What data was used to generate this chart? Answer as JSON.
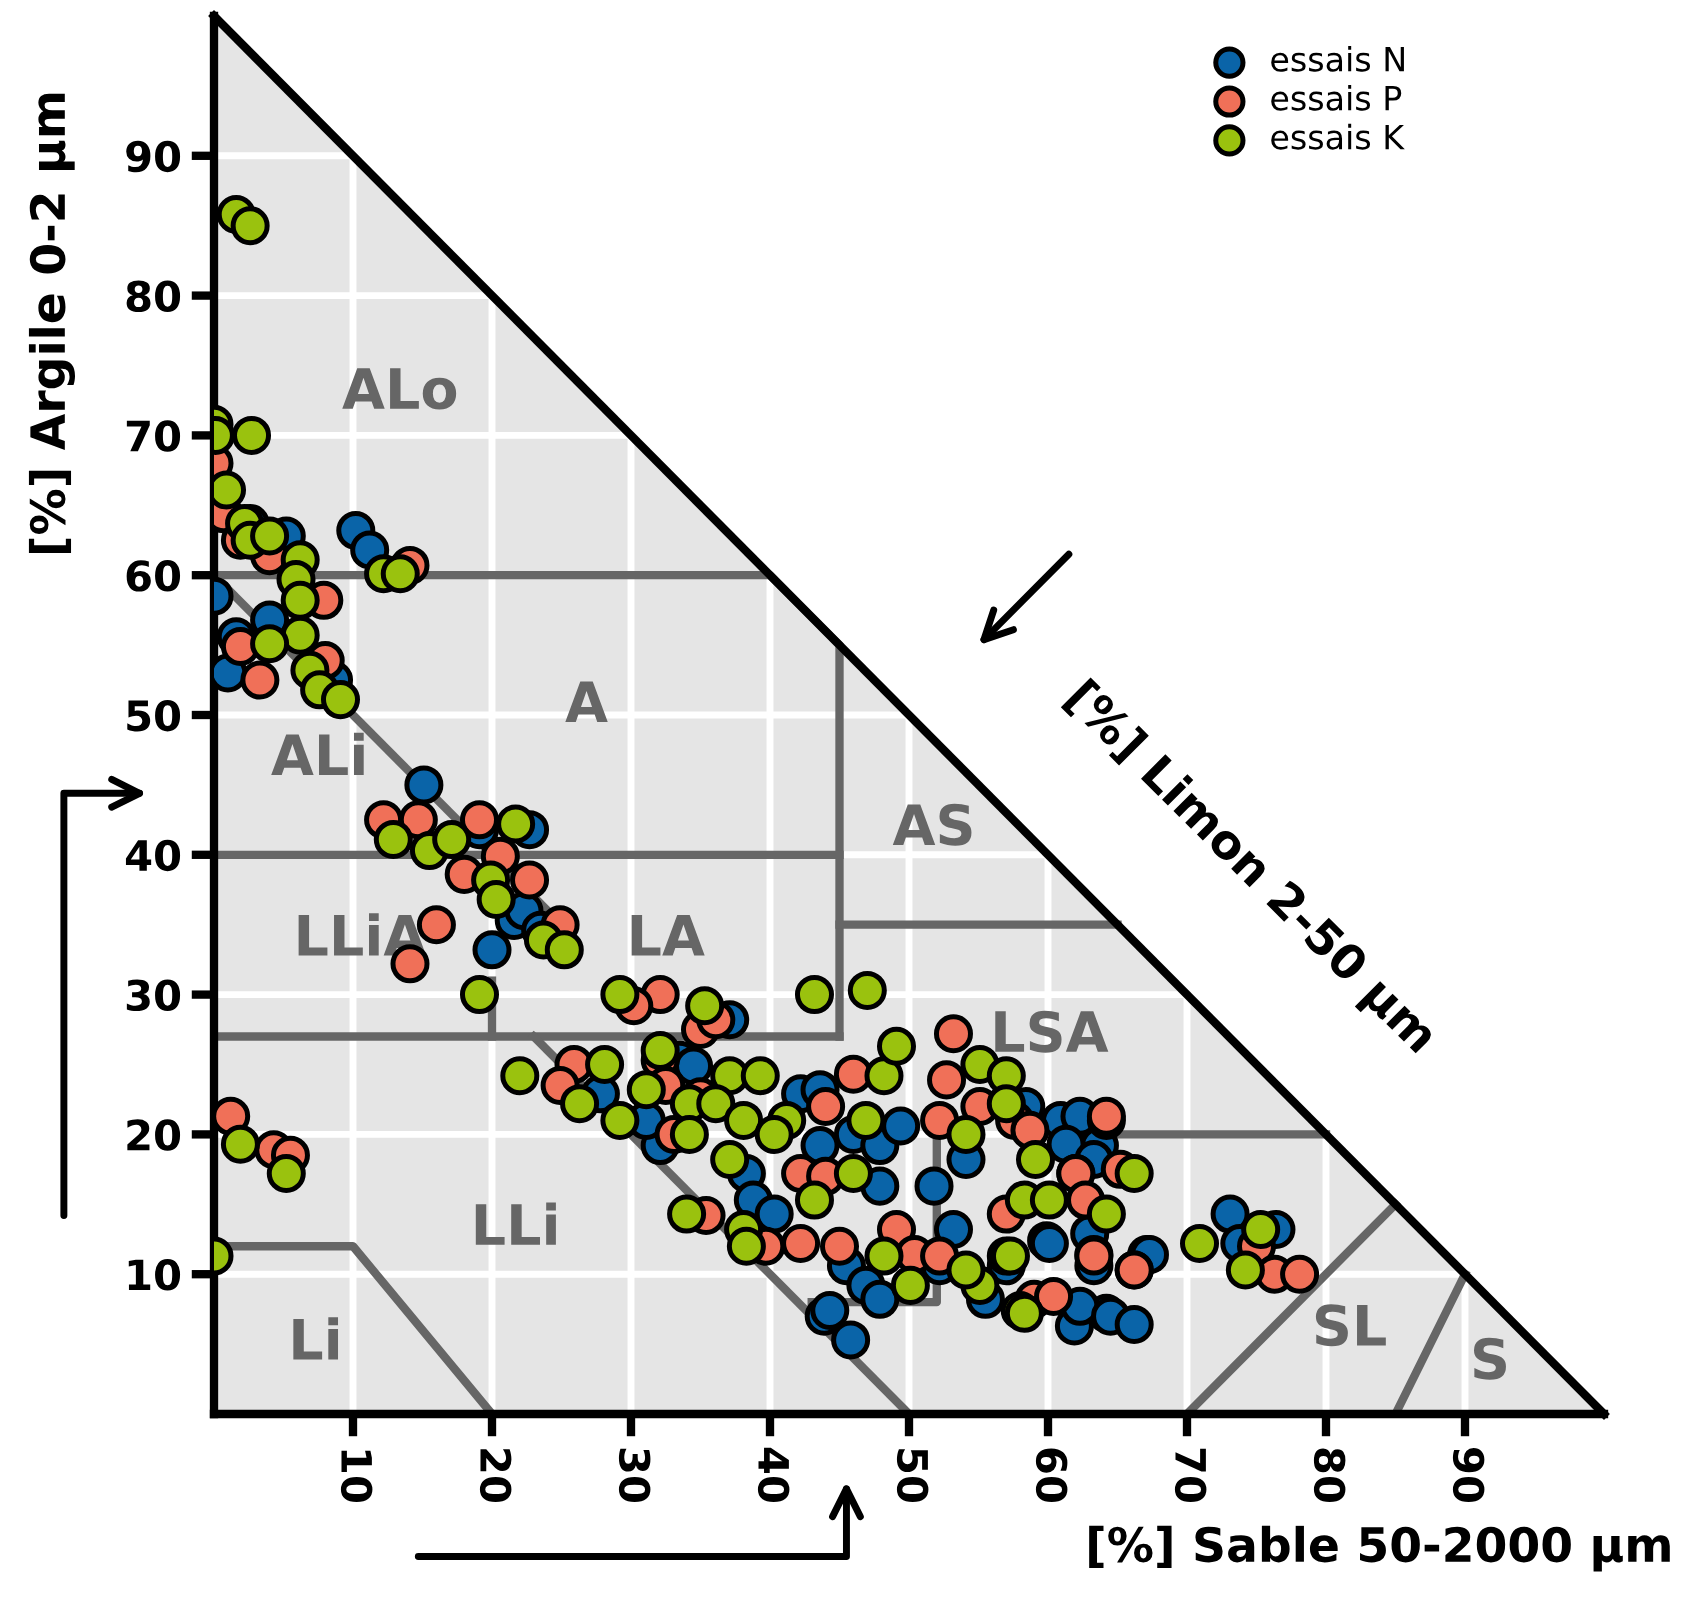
{
  "chart_data": {
    "type": "scatter",
    "xlabel": "[%] Sable 50-2000 µm",
    "ylabel": "[%] Argile 0-2 µm",
    "xlim": [
      0,
      100
    ],
    "ylim": [
      0,
      100
    ],
    "xticks": [
      10,
      20,
      30,
      40,
      50,
      60,
      70,
      80,
      90
    ],
    "yticks": [
      10,
      20,
      30,
      40,
      50,
      60,
      70,
      80,
      90
    ],
    "grid": true,
    "legend": "top right",
    "marker": "circle",
    "annotations": [
      "[%] Limon 2-50 µm",
      "ALo",
      "A",
      "ALi",
      "AS",
      "LLiA",
      "LA",
      "LSA",
      "LLi",
      "Li",
      "SL",
      "S"
    ],
    "series": [
      {
        "type": "line",
        "color": "#000000",
        "marker": "none",
        "x": [
          100,
          0
        ],
        "values": [
          0,
          100
        ]
      },
      {
        "type": "line",
        "color": "#666666",
        "marker": "none",
        "x": [
          0,
          40,
          45,
          45
        ],
        "values": [
          60,
          60,
          55,
          27
        ]
      },
      {
        "type": "line",
        "color": "#666666",
        "marker": "none",
        "x": [
          0,
          45
        ],
        "values": [
          40,
          40
        ]
      },
      {
        "type": "line",
        "color": "#666666",
        "marker": "none",
        "x": [
          45,
          65
        ],
        "values": [
          35,
          35
        ]
      },
      {
        "type": "line",
        "color": "#666666",
        "marker": "none",
        "x": [
          0,
          45
        ],
        "values": [
          27,
          27
        ]
      },
      {
        "type": "line",
        "color": "#666666",
        "marker": "none",
        "x": [
          0,
          25
        ],
        "values": [
          60,
          35
        ]
      },
      {
        "type": "line",
        "color": "#666666",
        "marker": "none",
        "x": [
          20,
          20
        ],
        "values": [
          31,
          27
        ]
      },
      {
        "type": "line",
        "color": "#666666",
        "marker": "none",
        "x": [
          23,
          50
        ],
        "values": [
          27,
          0
        ]
      },
      {
        "type": "line",
        "color": "#666666",
        "marker": "none",
        "x": [
          0,
          10,
          20
        ],
        "values": [
          12,
          12,
          0
        ]
      },
      {
        "type": "line",
        "color": "#666666",
        "marker": "none",
        "x": [
          43,
          52,
          52
        ],
        "values": [
          8,
          8,
          20
        ]
      },
      {
        "type": "line",
        "color": "#666666",
        "marker": "none",
        "x": [
          65,
          80
        ],
        "values": [
          20,
          20
        ]
      },
      {
        "type": "line",
        "color": "#666666",
        "marker": "none",
        "x": [
          70,
          85
        ],
        "values": [
          0,
          15
        ]
      },
      {
        "type": "line",
        "color": "#666666",
        "marker": "none",
        "x": [
          85,
          90
        ],
        "values": [
          0,
          10
        ]
      },
      {
        "name": "essais N",
        "color": "#0a64a8",
        "x": [
          0,
          1,
          1.6,
          2.6,
          5.2,
          4,
          8.6,
          10.2,
          11.2,
          15.1,
          19.1,
          22.7,
          20,
          21.6,
          22.3,
          23.5,
          33.5,
          27.8,
          32.1,
          31.1,
          34.5,
          37.1,
          38.3,
          38.8,
          40.3,
          42.2,
          43.6,
          43.6,
          46,
          47.9,
          49.4,
          47.9,
          45.5,
          46.9,
          47.9,
          43.9,
          45.8,
          51.8,
          53.2,
          54.1,
          52.2,
          60.9,
          63.7,
          59.9,
          63.3,
          61.9,
          64.2,
          67.1,
          57,
          58.4,
          55.5,
          62.3,
          61.3,
          63.3,
          60.1,
          63,
          62.3,
          64.5,
          66.2,
          73.1,
          73.8,
          76.4,
          67.3,
          44.3
        ],
        "values": [
          58.5,
          53,
          55.6,
          63.7,
          62.8,
          56.8,
          52.5,
          63.2,
          61.8,
          45,
          41.8,
          41.8,
          33.2,
          35.3,
          36,
          34.6,
          25.3,
          22.9,
          19.2,
          21,
          24.9,
          28.2,
          17.2,
          15.3,
          14.3,
          22.9,
          23.2,
          19.2,
          20,
          19.2,
          20.6,
          16.3,
          10.6,
          9.2,
          8.2,
          7,
          5.3,
          16.3,
          13.2,
          18.2,
          10.6,
          21,
          19.2,
          12.4,
          10.6,
          6.3,
          7.2,
          11.4,
          10.6,
          22,
          8.2,
          21.3,
          19.3,
          18.2,
          12.2,
          12.9,
          7.7,
          7,
          6.4,
          14.3,
          12.2,
          13.2,
          11.4,
          7.4
        ]
      },
      {
        "name": "essais P",
        "color": "#f07058",
        "x": [
          0,
          0.7,
          1.9,
          4,
          7.9,
          8,
          1.9,
          3.3,
          14.1,
          12.2,
          14.7,
          19.1,
          18,
          20.6,
          22.7,
          16,
          14.1,
          24.9,
          32.1,
          30.2,
          35,
          36.1,
          25.9,
          24.9,
          32.1,
          32.5,
          35,
          33.1,
          42.2,
          44,
          39.7,
          42.2,
          45,
          49.1,
          50.4,
          52.2,
          44,
          46,
          53.2,
          52.7,
          52.2,
          55.1,
          57.6,
          64.2,
          62,
          65.2,
          57,
          63.3,
          66.2,
          59,
          60.4,
          35.4,
          64.2,
          58.7,
          62,
          62.7,
          63.3,
          66.2,
          75,
          76.3,
          78.1,
          1.2,
          4.3,
          5.5
        ],
        "values": [
          68,
          64.4,
          62.5,
          61.4,
          58.2,
          53.9,
          54.9,
          52.5,
          60.7,
          42.5,
          42.5,
          42.5,
          38.6,
          39.9,
          38.2,
          35,
          32.2,
          35,
          30,
          29.2,
          27.5,
          28.2,
          25,
          23.5,
          25.3,
          23.5,
          22.7,
          20,
          17.2,
          17,
          12,
          12.2,
          12,
          13.2,
          11.4,
          11.3,
          22,
          24.3,
          27.2,
          23.9,
          21,
          22,
          21,
          21,
          17.2,
          17.5,
          14.3,
          11.4,
          10.3,
          8.2,
          8.4,
          14.2,
          21.3,
          20.3,
          17.2,
          15.3,
          11.3,
          10.3,
          12,
          10,
          10,
          21.3,
          18.9,
          18.5
        ]
      },
      {
        "name": "essais K",
        "color": "#9ac20e",
        "x": [
          1.6,
          2.6,
          0,
          0.1,
          2.7,
          0.9,
          2.2,
          2.6,
          4,
          6.2,
          5.9,
          6.2,
          6.2,
          4,
          6.9,
          7.6,
          9.1,
          12.2,
          13.4,
          12.9,
          15.5,
          17.1,
          21.7,
          19.9,
          20.3,
          23.7,
          25.2,
          19.1,
          0,
          1.9,
          5.2,
          47,
          29.2,
          35.3,
          22,
          28.1,
          26.3,
          29.2,
          32.1,
          31.1,
          34.2,
          34.2,
          37.1,
          36.1,
          38.1,
          39.3,
          41.2,
          40.3,
          37.1,
          34,
          38.1,
          38.3,
          43.2,
          46,
          46.9,
          48.2,
          49.1,
          43.2,
          48.2,
          50.1,
          54.1,
          55.1,
          57,
          57,
          59.1,
          58.3,
          60.1,
          64.2,
          66.2,
          57,
          55.1,
          58,
          54.1,
          57.3,
          58.3,
          70.9,
          75.3,
          74.2
        ],
        "values": [
          85.8,
          85,
          70.8,
          70,
          70,
          66.1,
          63.7,
          62.5,
          62.8,
          61.1,
          59.7,
          58.2,
          55.7,
          55.1,
          53.2,
          51.8,
          51.1,
          60.1,
          60.1,
          41.1,
          40.3,
          41.1,
          42.2,
          38.2,
          36.8,
          33.9,
          33.2,
          30,
          11.3,
          19.3,
          17.2,
          30.3,
          30,
          29.2,
          24.2,
          25,
          22.2,
          21,
          26,
          23.2,
          22.2,
          20,
          24.2,
          22.2,
          21,
          24.2,
          21,
          20,
          18.2,
          14.3,
          13.2,
          12,
          15.3,
          17.2,
          21,
          24.2,
          26.3,
          30,
          11.3,
          9.2,
          20,
          25,
          24.2,
          22.2,
          18.2,
          15.3,
          15.3,
          14.3,
          17.2,
          11.3,
          9.2,
          7.4,
          10.3,
          11.3,
          7.2,
          12.2,
          13.2,
          10.3
        ]
      }
    ]
  }
}
